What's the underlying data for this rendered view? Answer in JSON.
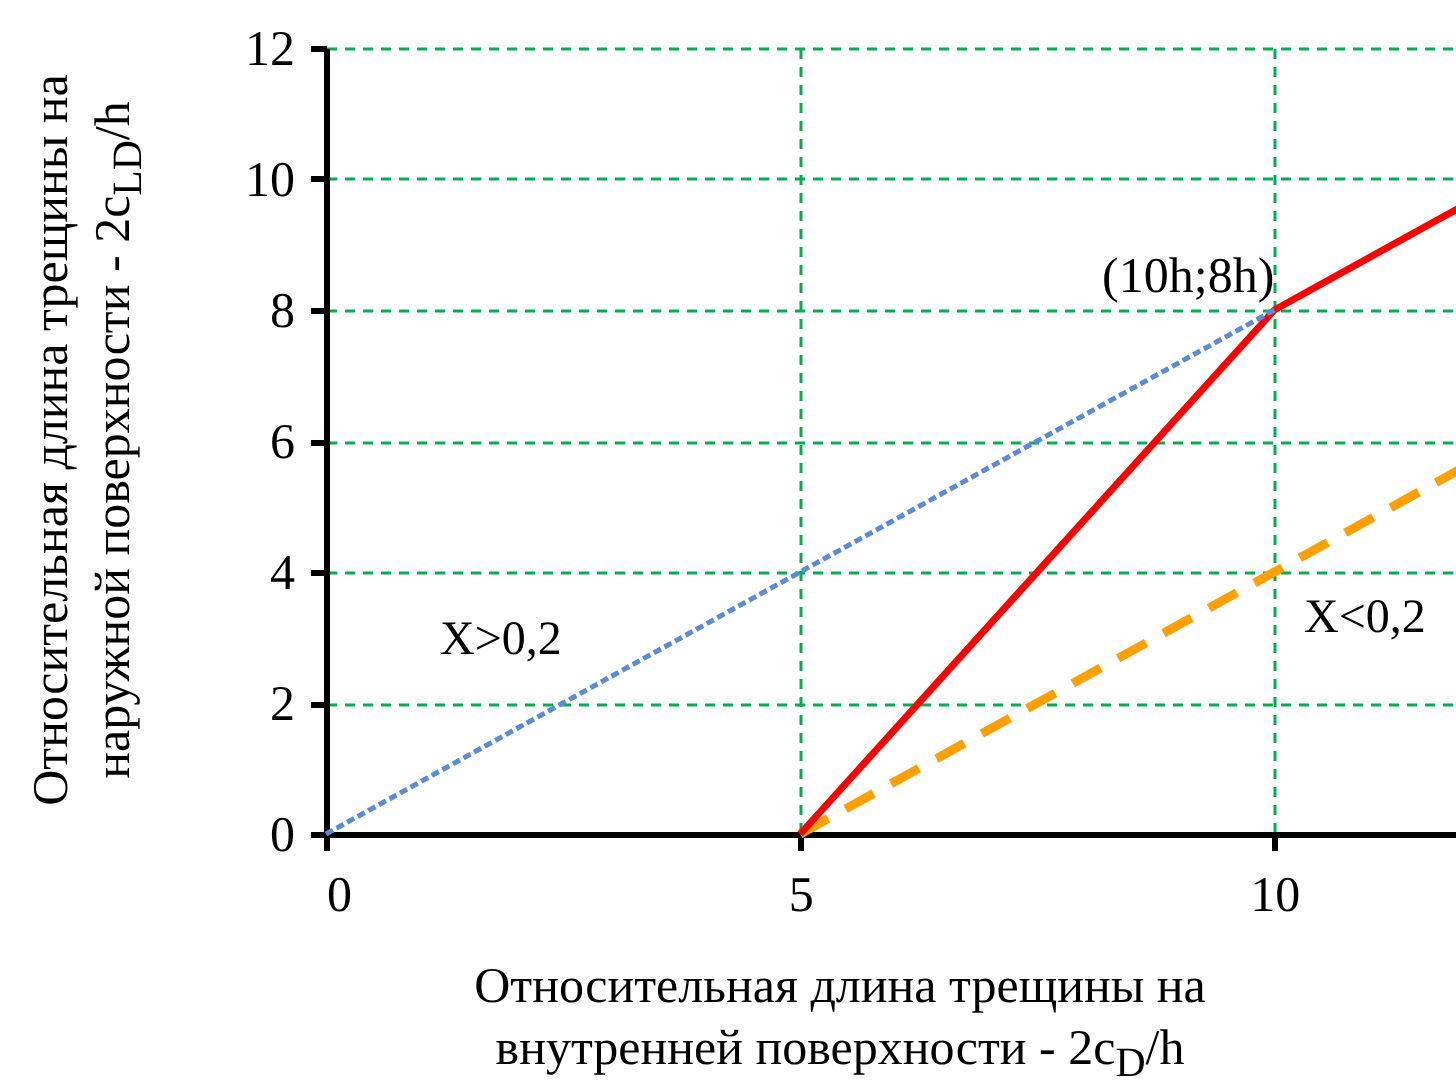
{
  "chart_data": {
    "type": "line",
    "xlabel": "Относительная длина трещины на внутренней поверхности - 2c$_{D}$/h",
    "ylabel": "Относительная длина трещины на наружной поверхности - 2c$_{LD}$/h",
    "xlim": [
      0,
      12
    ],
    "xticks": [
      0,
      5,
      10
    ],
    "ylim": [
      0,
      12
    ],
    "yticks": [
      0,
      2,
      4,
      6,
      8,
      10,
      12
    ],
    "grid": true,
    "marker": "none",
    "series": [
      {
        "color": "#5b8bd6",
        "line_style": "dotted",
        "x": [
          0,
          10
        ],
        "values": [
          0,
          8
        ]
      },
      {
        "color": "#ff0000",
        "line_style": "solid",
        "x": [
          5,
          10,
          12
        ],
        "values": [
          0,
          8,
          9.6
        ]
      },
      {
        "color": "#ffa000",
        "line_style": "dashed",
        "x": [
          5,
          12
        ],
        "values": [
          0,
          5.6
        ]
      }
    ],
    "annotations": [
      {
        "text": "(10h;8h)",
        "x": 10,
        "y": 8
      },
      "X>0,2",
      "X<0,2"
    ]
  }
}
